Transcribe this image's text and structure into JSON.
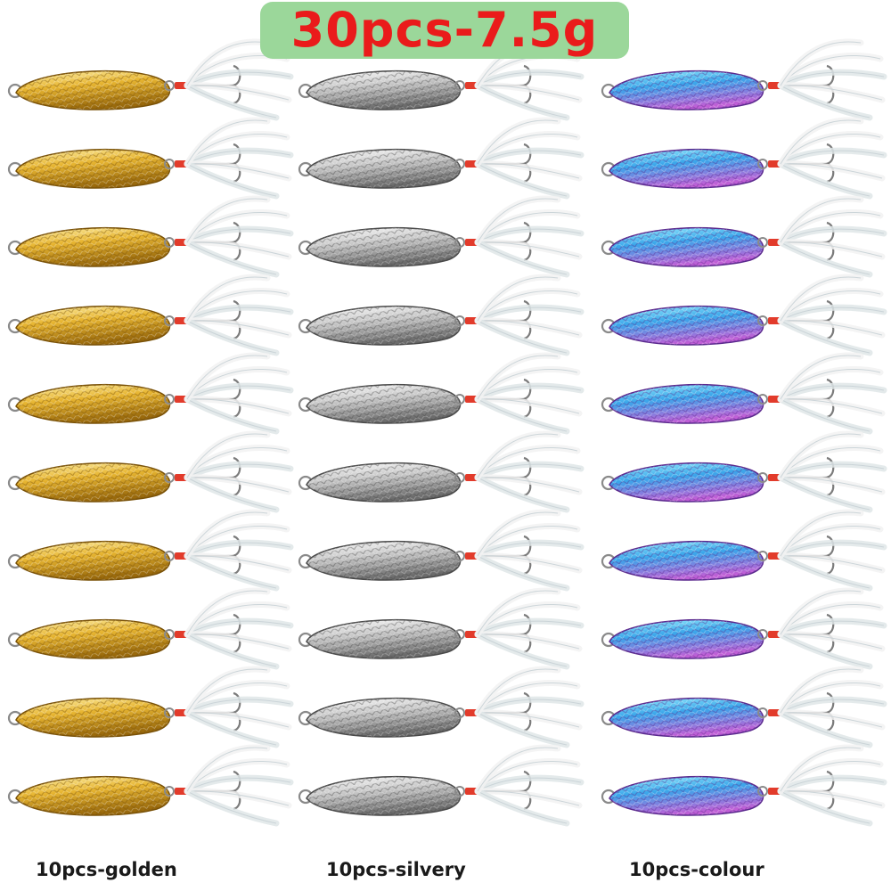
{
  "title": "30pcs-7.5g",
  "columns": [
    {
      "label": "10pcs-golden",
      "finish": "golden",
      "count": 10,
      "colors": {
        "light": "#fff3b0",
        "mid": "#e7b531",
        "dark": "#9a6a0c",
        "edge": "#7a5208"
      }
    },
    {
      "label": "10pcs-silvery",
      "finish": "silvery",
      "count": 10,
      "colors": {
        "light": "#ffffff",
        "mid": "#c9c9c9",
        "dark": "#6b6b6b",
        "edge": "#4a4a4a"
      }
    },
    {
      "label": "10pcs-colour",
      "finish": "colour",
      "count": 10,
      "colors": {
        "light": "#9ff3ff",
        "mid": "#3aa6ea",
        "dark": "#c05fd6",
        "edge": "#5b2a8e"
      }
    }
  ],
  "colors": {
    "title_background": "#9bd79a",
    "title_text": "#ea1b1b",
    "tie_thread": "#e23b2b",
    "feather": "#f2f2f2"
  },
  "icons": [
    "fishing-spoon-lure-icon",
    "treble-hook-icon",
    "split-ring-icon",
    "feather-tail-icon"
  ]
}
